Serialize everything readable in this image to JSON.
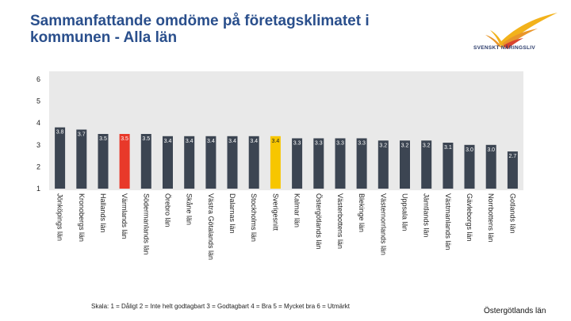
{
  "title": "Sammanfattande omdöme på företagsklimatet i kommunen - Alla län",
  "logo_text": "SVENSKT NÄRINGSLIV",
  "footnote": "Skala: 1 = Dåligt 2 = Inte helt godtagbart 3 = Godtagbart 4 = Bra 5 = Mycket bra 6 = Utmärkt",
  "region_label": "Östergötlands län",
  "colors": {
    "bar": "#3c4552",
    "highlight_county": "#e8392a",
    "national_average": "#f7c600",
    "band": "#e9e9e9",
    "logo": "#f2b21b"
  },
  "chart_data": {
    "type": "bar",
    "title": "Sammanfattande omdöme på företagsklimatet i kommunen - Alla län",
    "ylim": [
      1,
      6
    ],
    "yticks": [
      "1",
      "2",
      "3",
      "4",
      "5",
      "6"
    ],
    "grid": false,
    "highlight": {
      "Värmlands län": "highlight_county",
      "Sverigesnitt": "national_average"
    },
    "categories": [
      "Jönköpings län",
      "Kronobergs län",
      "Hallands län",
      "Värmlands län",
      "Södermanlands län",
      "Örebro län",
      "Skåne län",
      "Västra Götalands län",
      "Dalarnas län",
      "Stockholms län",
      "Sverigesnitt",
      "Kalmar län",
      "Östergötlands län",
      "Västerbottens län",
      "Blekinge län",
      "Västernorrlands län",
      "Uppsala län",
      "Jämtlands län",
      "Västmanlands län",
      "Gävleborgs län",
      "Norrbottens län",
      "Gotlands län"
    ],
    "values": [
      3.8,
      3.7,
      3.5,
      3.5,
      3.5,
      3.4,
      3.4,
      3.4,
      3.4,
      3.4,
      3.4,
      3.3,
      3.3,
      3.3,
      3.3,
      3.2,
      3.2,
      3.2,
      3.1,
      3.0,
      3.0,
      2.7
    ],
    "value_labels": [
      "3.8",
      "3.7",
      "3.5",
      "3.5",
      "3.5",
      "3.4",
      "3.4",
      "3.4",
      "3.4",
      "3.4",
      "3.4",
      "3.3",
      "3.3",
      "3.3",
      "3.3",
      "3.2",
      "3.2",
      "3.2",
      "3.1",
      "3.0",
      "3.0",
      "2.7"
    ]
  }
}
